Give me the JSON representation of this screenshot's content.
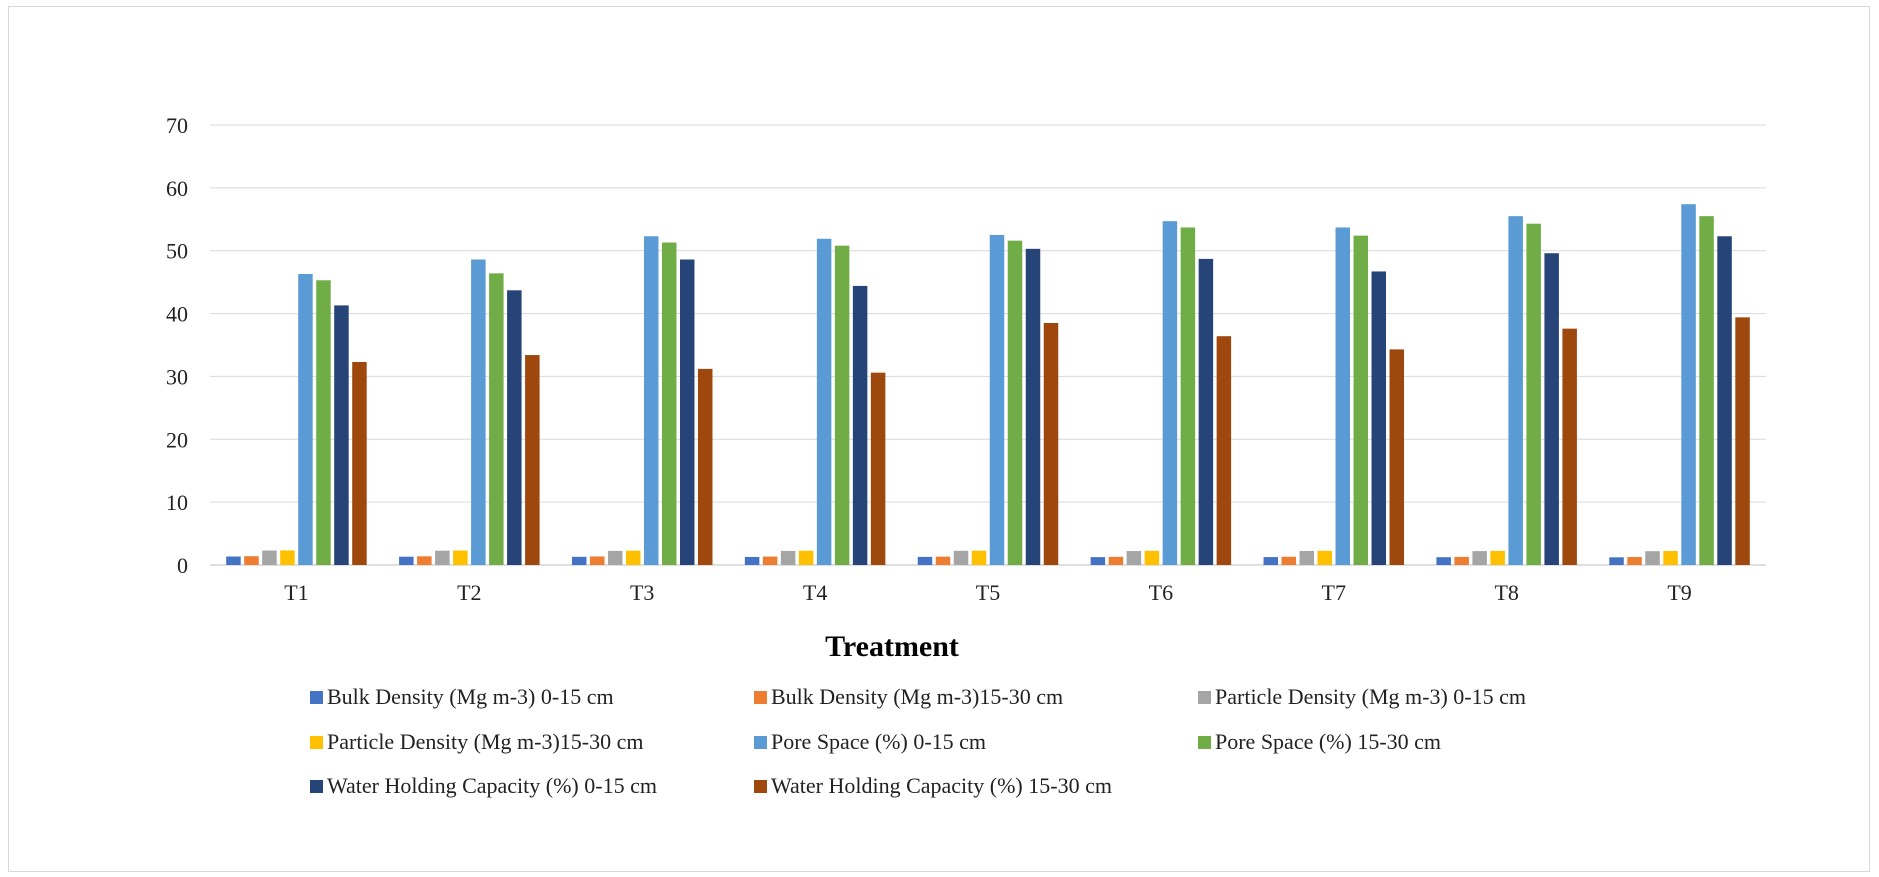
{
  "chart_data": {
    "type": "bar",
    "title": "",
    "xlabel": "Treatment",
    "ylabel": "",
    "ylim": [
      0,
      70
    ],
    "yticks": [
      0,
      10,
      20,
      30,
      40,
      50,
      60,
      70
    ],
    "grid": true,
    "legend_position": "bottom",
    "categories": [
      "T1",
      "T2",
      "T3",
      "T4",
      "T5",
      "T6",
      "T7",
      "T8",
      "T9"
    ],
    "series": [
      {
        "name": "Bulk Density (Mg m-3) 0-15 cm",
        "color": "#4472C4",
        "values": [
          1.35,
          1.32,
          1.3,
          1.28,
          1.29,
          1.25,
          1.26,
          1.24,
          1.22
        ]
      },
      {
        "name": "Bulk Density (Mg m-3)15-30 cm",
        "color": "#ED7D31",
        "values": [
          1.4,
          1.38,
          1.36,
          1.34,
          1.33,
          1.3,
          1.31,
          1.29,
          1.27
        ]
      },
      {
        "name": "Particle Density (Mg m-3) 0-15 cm",
        "color": "#A5A5A5",
        "values": [
          2.3,
          2.28,
          2.25,
          2.24,
          2.26,
          2.22,
          2.23,
          2.21,
          2.2
        ]
      },
      {
        "name": "Particle Density (Mg m-3)15-30 cm",
        "color": "#FFC000",
        "values": [
          2.32,
          2.3,
          2.28,
          2.27,
          2.28,
          2.25,
          2.26,
          2.24,
          2.23
        ]
      },
      {
        "name": "Pore Space (%) 0-15 cm",
        "color": "#5B9BD5",
        "values": [
          46.3,
          48.6,
          52.3,
          51.9,
          52.5,
          54.7,
          53.7,
          55.5,
          57.4
        ]
      },
      {
        "name": "Pore Space  (%) 15-30 cm",
        "color": "#70AD47",
        "values": [
          45.3,
          46.4,
          51.3,
          50.8,
          51.6,
          53.7,
          52.4,
          54.3,
          55.5
        ]
      },
      {
        "name": "Water Holding Capacity (%) 0-15 cm",
        "color": "#264478",
        "values": [
          41.3,
          43.7,
          48.6,
          44.4,
          50.3,
          48.7,
          46.7,
          49.6,
          52.3
        ]
      },
      {
        "name": "Water Holding Capacity (%) 15-30 cm",
        "color": "#9E480E",
        "values": [
          32.3,
          33.4,
          31.2,
          30.6,
          38.5,
          36.4,
          34.3,
          37.6,
          39.4
        ]
      }
    ]
  }
}
